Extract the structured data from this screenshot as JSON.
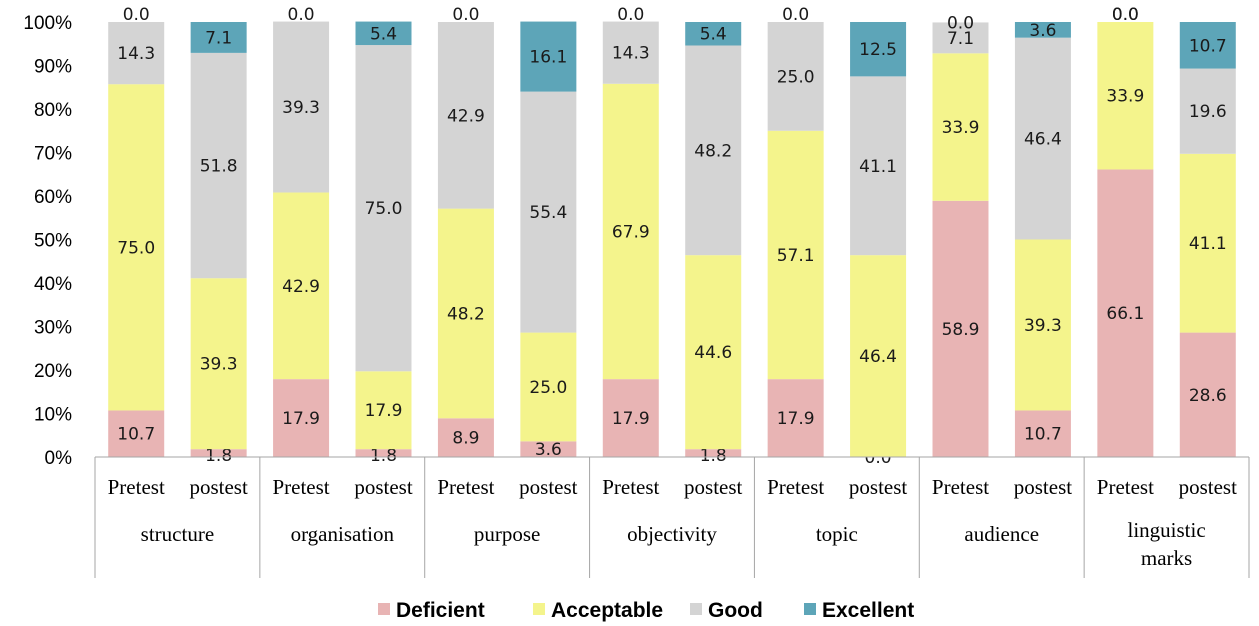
{
  "chart_data": {
    "type": "bar",
    "stacked": true,
    "y_axis": {
      "min": 0,
      "max": 100,
      "step": 10,
      "unit": "%"
    },
    "tests": [
      "Pretest",
      "postest"
    ],
    "groups": [
      "structure",
      "organisation",
      "purpose",
      "objectivity",
      "topic",
      "audience",
      "linguistic marks"
    ],
    "legend_position": "bottom",
    "series": [
      {
        "name": "Deficient",
        "color": "#e8b4b4",
        "values": [
          10.7,
          1.8,
          17.9,
          1.8,
          8.9,
          3.6,
          17.9,
          1.8,
          17.9,
          0.0,
          58.9,
          10.7,
          66.1,
          28.6
        ]
      },
      {
        "name": "Acceptable",
        "color": "#f4f48c",
        "values": [
          75.0,
          39.3,
          42.9,
          17.9,
          48.2,
          25.0,
          67.9,
          44.6,
          57.1,
          46.4,
          33.9,
          39.3,
          33.9,
          41.1
        ]
      },
      {
        "name": "Good",
        "color": "#d4d4d4",
        "values": [
          14.3,
          51.8,
          39.3,
          75.0,
          42.9,
          55.4,
          14.3,
          48.2,
          25.0,
          41.1,
          7.1,
          46.4,
          0.0,
          19.6
        ]
      },
      {
        "name": "Excellent",
        "color": "#5da5b8",
        "values": [
          0.0,
          7.1,
          0.0,
          5.4,
          0.0,
          16.1,
          0.0,
          5.4,
          0.0,
          12.5,
          0.0,
          3.6,
          0.0,
          10.7
        ]
      }
    ]
  }
}
